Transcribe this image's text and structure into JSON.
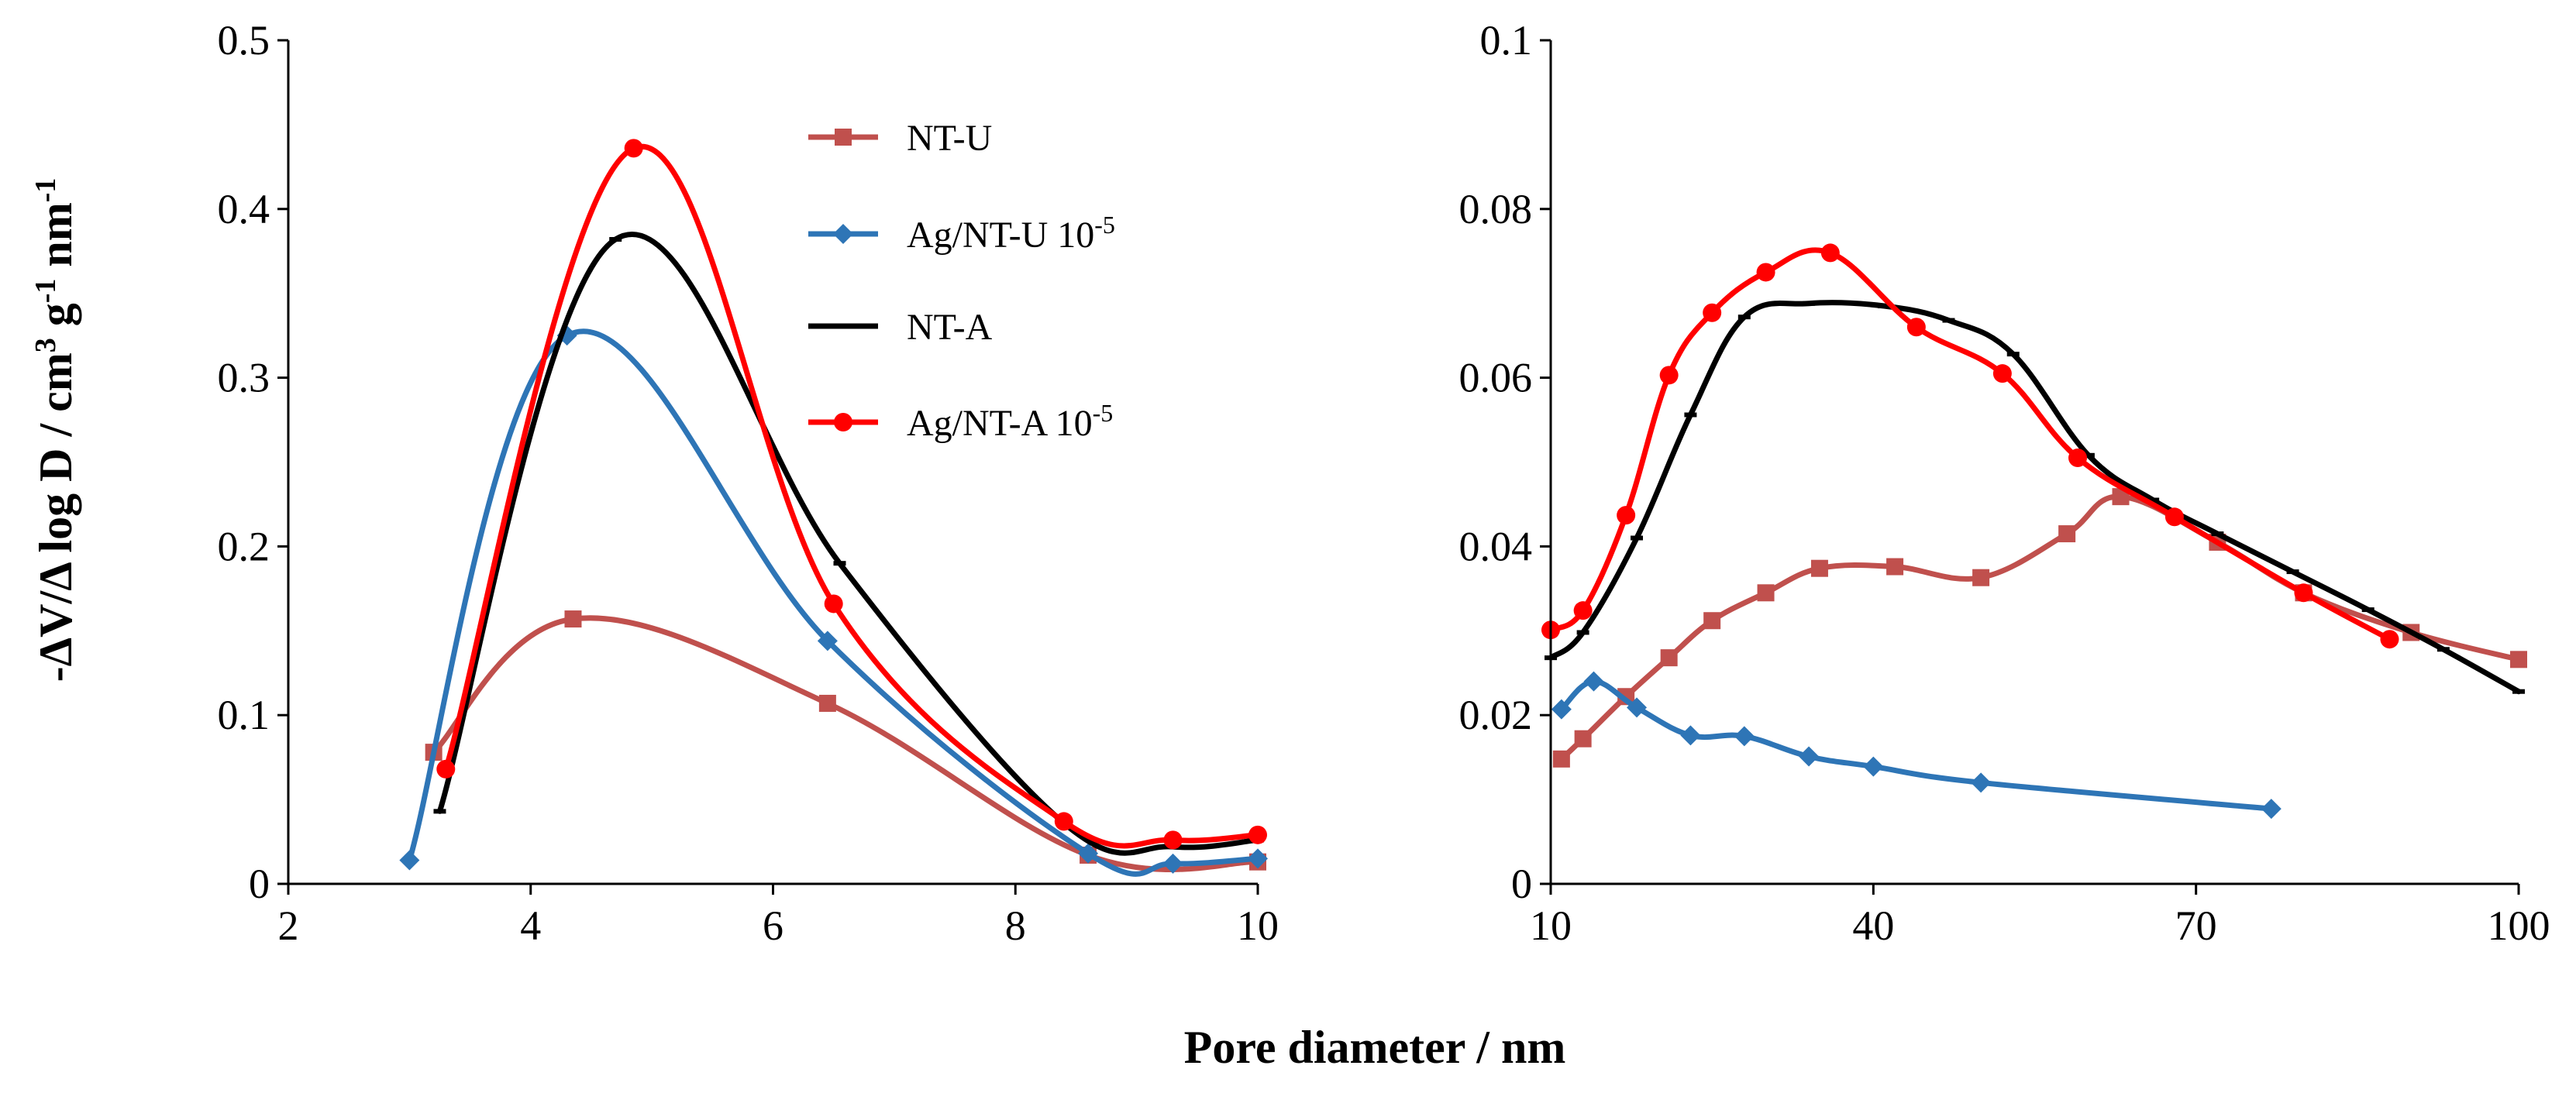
{
  "figure": {
    "shared_ylabel_parts": [
      "-ΔV/Δ log D / cm",
      "3",
      " g",
      "-1",
      " nm",
      "-1"
    ],
    "shared_xlabel": "Pore diameter / nm"
  },
  "legend_entries": [
    {
      "series": "NT-U",
      "base": "NT-U",
      "sup": ""
    },
    {
      "series": "Ag/NT-U 10-5",
      "base": "Ag/NT-U 10",
      "sup": "-5"
    },
    {
      "series": "NT-A",
      "base": "NT-A",
      "sup": ""
    },
    {
      "series": "Ag/NT-A 10-5",
      "base": "Ag/NT-A 10",
      "sup": "-5"
    }
  ],
  "series_style": {
    "NT-U": {
      "color": "#C0504D",
      "marker": "square"
    },
    "Ag/NT-U 10-5": {
      "color": "#2E75B6",
      "marker": "diamond"
    },
    "NT-A": {
      "color": "#000000",
      "marker": "dash"
    },
    "Ag/NT-A 10-5": {
      "color": "#FF0000",
      "marker": "circle"
    }
  },
  "chart_data": [
    {
      "type": "line",
      "title": "",
      "xlabel": "Pore diameter / nm",
      "ylabel": "-ΔV/Δ log D / cm3 g-1 nm-1",
      "xlim": [
        2,
        10
      ],
      "ylim": [
        0,
        0.5
      ],
      "xticks": [
        2,
        4,
        6,
        8,
        10
      ],
      "yticks": [
        0,
        0.1,
        0.2,
        0.3,
        0.4,
        0.5
      ],
      "xtick_labels": [
        "2",
        "4",
        "6",
        "8",
        "10"
      ],
      "ytick_labels": [
        "0",
        "0.1",
        "0.2",
        "0.3",
        "0.4",
        "0.5"
      ],
      "smooth": true,
      "grid": false,
      "legend": "upper-right",
      "series": [
        {
          "name": "NT-U",
          "x": [
            3.2,
            4.35,
            6.45,
            8.6,
            10.0
          ],
          "y": [
            0.078,
            0.157,
            0.107,
            0.017,
            0.013
          ]
        },
        {
          "name": "Ag/NT-U 10-5",
          "x": [
            3.0,
            4.3,
            6.45,
            8.6,
            9.3,
            10.0
          ],
          "y": [
            0.014,
            0.325,
            0.144,
            0.018,
            0.012,
            0.015
          ]
        },
        {
          "name": "NT-A",
          "x": [
            3.25,
            4.7,
            6.55,
            8.4,
            9.3,
            10.0
          ],
          "y": [
            0.043,
            0.382,
            0.19,
            0.036,
            0.022,
            0.026
          ]
        },
        {
          "name": "Ag/NT-A 10-5",
          "x": [
            3.3,
            4.85,
            6.5,
            8.4,
            9.3,
            10.0
          ],
          "y": [
            0.068,
            0.436,
            0.166,
            0.037,
            0.026,
            0.029
          ]
        }
      ]
    },
    {
      "type": "line",
      "title": "",
      "xlabel": "Pore diameter / nm",
      "ylabel": "",
      "xlim": [
        10,
        100
      ],
      "ylim": [
        0,
        0.1
      ],
      "xticks": [
        10,
        40,
        70,
        100
      ],
      "yticks": [
        0,
        0.02,
        0.04,
        0.06,
        0.08,
        0.1
      ],
      "xtick_labels": [
        "10",
        "40",
        "70",
        "100"
      ],
      "ytick_labels": [
        "0",
        "0.02",
        "0.04",
        "0.06",
        "0.08",
        "0.1"
      ],
      "smooth": true,
      "grid": false,
      "series": [
        {
          "name": "NT-U",
          "x": [
            11,
            13,
            17,
            21,
            25,
            30,
            35,
            42,
            50,
            58,
            63,
            72,
            80,
            90,
            100
          ],
          "y": [
            0.0148,
            0.0172,
            0.0222,
            0.0268,
            0.0312,
            0.0345,
            0.0374,
            0.0376,
            0.0363,
            0.0415,
            0.0459,
            0.0405,
            0.0345,
            0.0298,
            0.0266
          ]
        },
        {
          "name": "Ag/NT-U 10-5",
          "x": [
            11,
            14,
            18,
            23,
            28,
            34,
            40,
            50,
            77
          ],
          "y": [
            0.0207,
            0.024,
            0.0209,
            0.0176,
            0.0175,
            0.0151,
            0.0139,
            0.012,
            0.0089
          ]
        },
        {
          "name": "NT-A",
          "x": [
            10,
            13,
            18,
            23,
            28,
            34,
            41,
            47,
            53,
            60,
            66,
            72,
            79,
            86,
            93,
            100
          ],
          "y": [
            0.0268,
            0.0298,
            0.041,
            0.0556,
            0.0672,
            0.0688,
            0.0685,
            0.0668,
            0.0628,
            0.0508,
            0.0455,
            0.0415,
            0.037,
            0.0325,
            0.0278,
            0.0228
          ]
        },
        {
          "name": "Ag/NT-A 10-5",
          "x": [
            10,
            13,
            17,
            21,
            25,
            30,
            36,
            44,
            52,
            59,
            68,
            80,
            88
          ],
          "y": [
            0.0301,
            0.0324,
            0.0437,
            0.0603,
            0.0677,
            0.0725,
            0.0748,
            0.066,
            0.0605,
            0.0505,
            0.0435,
            0.0345,
            0.029
          ]
        }
      ]
    }
  ]
}
